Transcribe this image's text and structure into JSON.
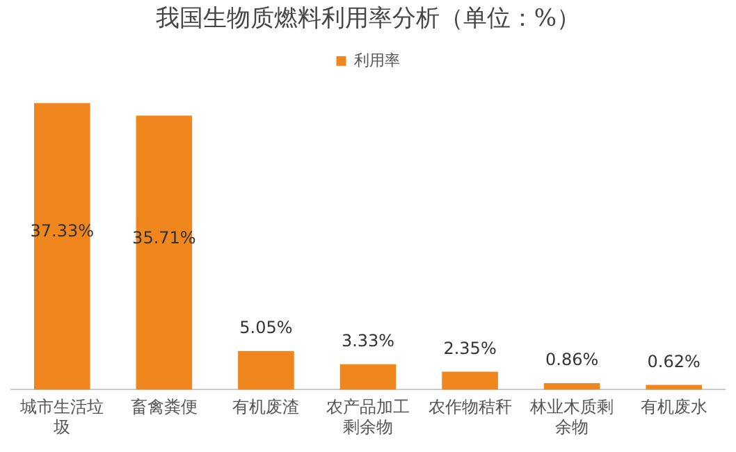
{
  "chart_data": {
    "type": "bar",
    "title": "我国生物质燃料利用率分析（单位：%）",
    "categories": [
      "城市生活垃圾",
      "畜禽粪便",
      "有机废渣",
      "农产品加工剩余物",
      "农作物秸秆",
      "林业木质剩余物",
      "有机废水"
    ],
    "series": [
      {
        "name": "利用率",
        "color": "#f0861e",
        "values": [
          37.33,
          35.71,
          5.05,
          3.33,
          2.35,
          0.86,
          0.62
        ],
        "value_labels": [
          "37.33%",
          "35.71%",
          "5.05%",
          "3.33%",
          "2.35%",
          "0.86%",
          "0.62%"
        ]
      }
    ],
    "legend": "top",
    "grid": false
  }
}
